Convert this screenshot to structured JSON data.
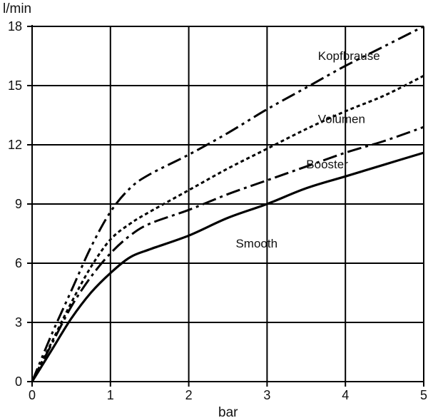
{
  "chart_data": {
    "type": "line",
    "xlabel": "bar",
    "ylabel": "l/min",
    "xlim": [
      0,
      5
    ],
    "ylim": [
      0,
      18
    ],
    "x_ticks": [
      "0",
      "1",
      "2",
      "3",
      "4",
      "5"
    ],
    "y_ticks": [
      "0",
      "3",
      "6",
      "9",
      "12",
      "15",
      "18"
    ],
    "grid": true,
    "series": [
      {
        "name": "Kopfbrause",
        "dash": "dash-dot-dot",
        "points": [
          [
            0,
            0
          ],
          [
            0.25,
            2.4
          ],
          [
            0.5,
            4.6
          ],
          [
            0.75,
            6.8
          ],
          [
            1.0,
            8.6
          ],
          [
            1.25,
            9.8
          ],
          [
            1.5,
            10.5
          ],
          [
            2.0,
            11.5
          ],
          [
            2.5,
            12.6
          ],
          [
            3.0,
            13.8
          ],
          [
            3.5,
            14.9
          ],
          [
            4.0,
            16.0
          ],
          [
            4.5,
            17.0
          ],
          [
            5.0,
            18.0
          ]
        ]
      },
      {
        "name": "Volumen",
        "dash": "dotted",
        "points": [
          [
            0,
            0
          ],
          [
            0.25,
            2.0
          ],
          [
            0.5,
            4.0
          ],
          [
            0.75,
            5.8
          ],
          [
            1.0,
            7.2
          ],
          [
            1.25,
            8.0
          ],
          [
            1.5,
            8.6
          ],
          [
            2.0,
            9.7
          ],
          [
            2.5,
            10.8
          ],
          [
            3.0,
            11.8
          ],
          [
            3.5,
            12.8
          ],
          [
            4.0,
            13.7
          ],
          [
            4.5,
            14.5
          ],
          [
            5.0,
            15.5
          ]
        ]
      },
      {
        "name": "Booster",
        "dash": "dash-dot",
        "points": [
          [
            0,
            0
          ],
          [
            0.25,
            1.9
          ],
          [
            0.5,
            3.8
          ],
          [
            0.75,
            5.3
          ],
          [
            1.0,
            6.5
          ],
          [
            1.25,
            7.4
          ],
          [
            1.5,
            8.0
          ],
          [
            2.0,
            8.7
          ],
          [
            2.5,
            9.5
          ],
          [
            3.0,
            10.2
          ],
          [
            3.5,
            10.9
          ],
          [
            4.0,
            11.6
          ],
          [
            4.5,
            12.2
          ],
          [
            5.0,
            12.9
          ]
        ]
      },
      {
        "name": "Smooth",
        "dash": "solid",
        "points": [
          [
            0,
            0
          ],
          [
            0.25,
            1.6
          ],
          [
            0.5,
            3.2
          ],
          [
            0.75,
            4.5
          ],
          [
            1.0,
            5.5
          ],
          [
            1.25,
            6.3
          ],
          [
            1.5,
            6.7
          ],
          [
            2.0,
            7.4
          ],
          [
            2.5,
            8.3
          ],
          [
            3.0,
            9.0
          ],
          [
            3.5,
            9.8
          ],
          [
            4.0,
            10.4
          ],
          [
            4.5,
            11.0
          ],
          [
            5.0,
            11.6
          ]
        ]
      }
    ],
    "series_labels": [
      {
        "name": "Kopfbrause",
        "x": 3.65,
        "y": 16.3
      },
      {
        "name": "Volumen",
        "x": 3.65,
        "y": 13.1
      },
      {
        "name": "Booster",
        "x": 3.5,
        "y": 10.8
      },
      {
        "name": "Smooth",
        "x": 2.6,
        "y": 6.8
      }
    ]
  }
}
